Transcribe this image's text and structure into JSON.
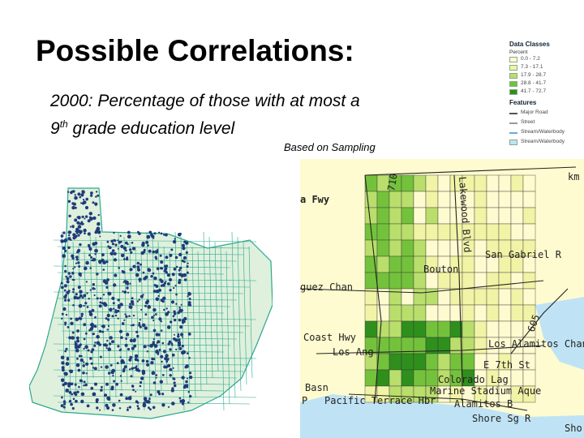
{
  "slide": {
    "title": "Possible Correlations:",
    "subtitle_line1": "2000: Percentage of those with at most a",
    "subtitle_line2_pre": "9",
    "subtitle_line2_sup": "th",
    "subtitle_line2_post": " grade education level",
    "note": "Based on Sampling"
  },
  "legend": {
    "heading_classes": "Data Classes",
    "subheading": "Percent",
    "classes": [
      {
        "label": "0.0 - 7.2",
        "color": "#fffbd0"
      },
      {
        "label": "7.3 - 17.1",
        "color": "#f1f4a6"
      },
      {
        "label": "17.9 - 28.7",
        "color": "#b9de6c"
      },
      {
        "label": "28.8 - 41.7",
        "color": "#74c23c"
      },
      {
        "label": "41.7 - 72.7",
        "color": "#2e8f1d"
      }
    ],
    "heading_features": "Features",
    "features": [
      {
        "label": "Major Road",
        "color": "#555555"
      },
      {
        "label": "Street",
        "color": "#999999"
      },
      {
        "label": "Stream/Waterbody",
        "color": "#66aadd"
      },
      {
        "label": "Stream/Waterbody",
        "color": "#bfe3f5"
      }
    ]
  },
  "map_labels": {
    "fwy": "a Fwy",
    "lakewood": "Lakewood Blvd",
    "n710": "710",
    "san_gabriel": "San Gabriel R",
    "bouton": "Bouton",
    "dominguez": "guez Chan",
    "i605": "605",
    "coast_hwy": "Coast Hwy",
    "los_alamitos": "Los Alamitos Chan",
    "los_ang": "Los Ang",
    "seventh": "E 7th St",
    "colorado": "Colorado Lag",
    "stadium": "Marine Stadium Aque",
    "alamitos_b": "Alamitos B",
    "basin": "Basn",
    "pacific_terrace": "Pacific Terrace Hbr",
    "shore": "Shore Sg R",
    "sho": "Sho",
    "pt": "P",
    "km": "km"
  },
  "colors": {
    "land": "#fffbd0",
    "water": "#bfe3f5",
    "dark_dots": "#1f3b7a",
    "teal_grid": "#2aa88f",
    "sampling_land": "#dff0dc"
  }
}
